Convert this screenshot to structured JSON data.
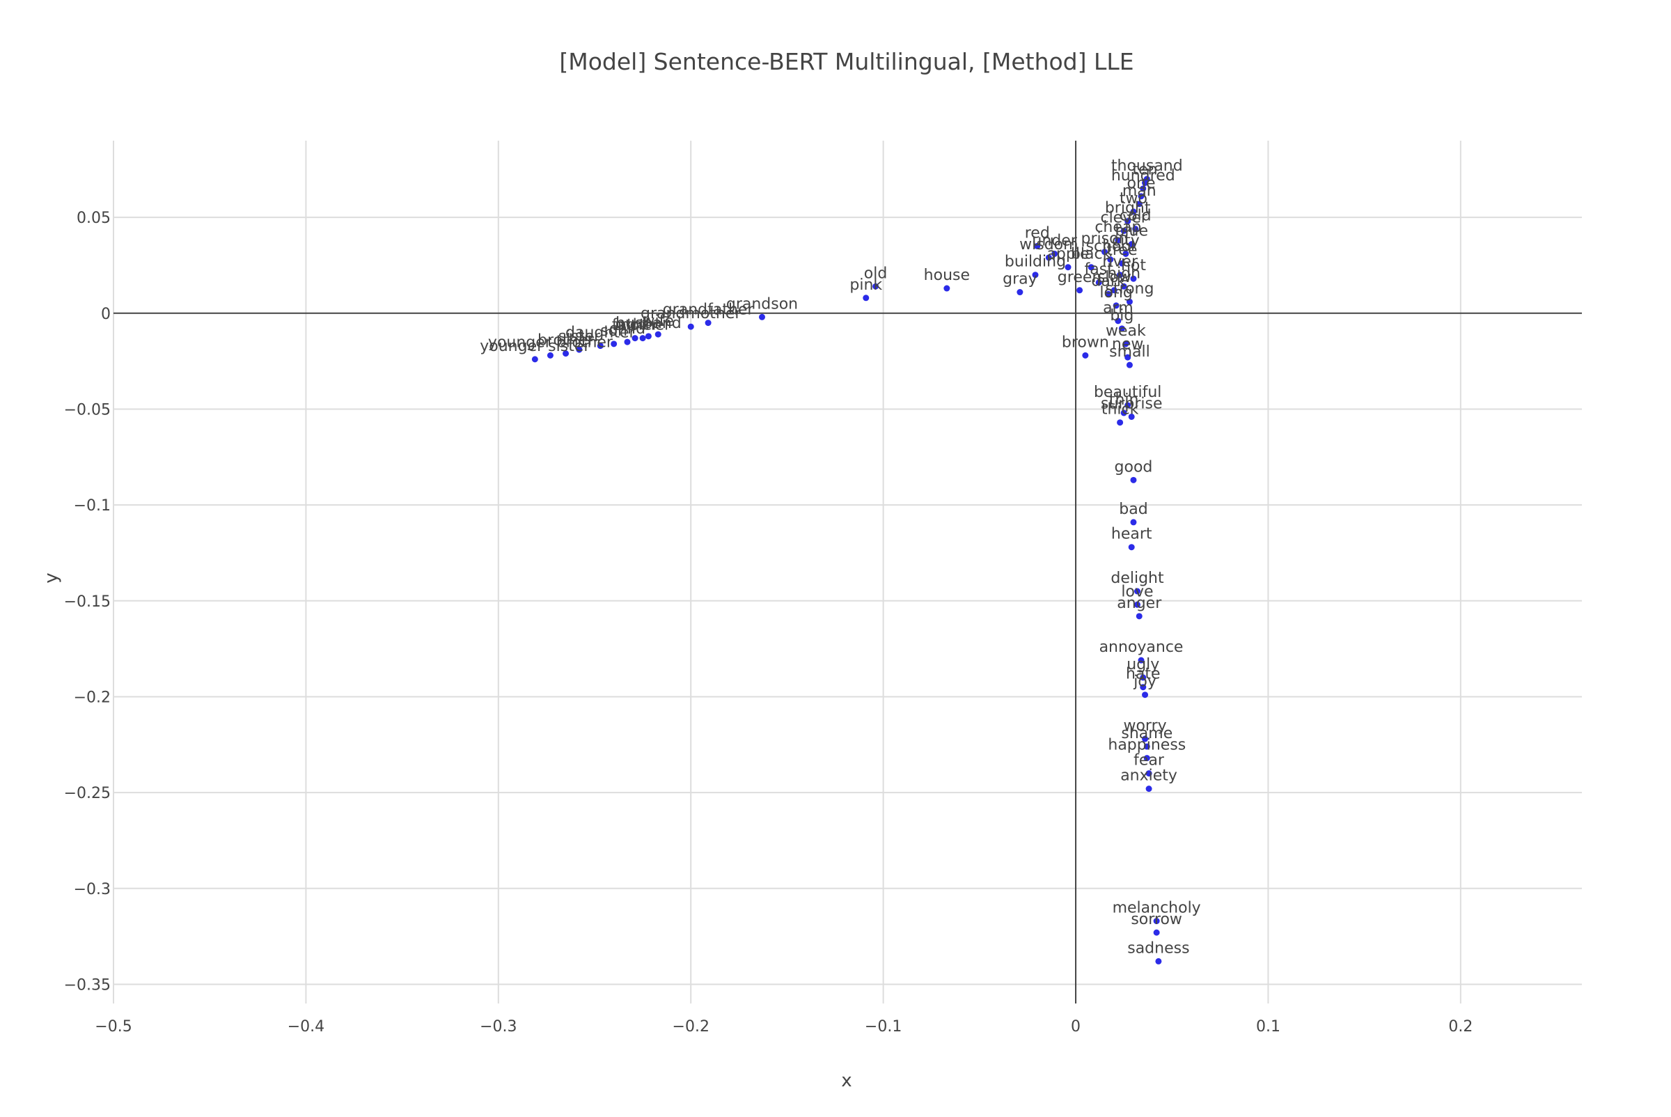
{
  "chart_data": {
    "type": "scatter",
    "title": "[Model] Sentence-BERT Multilingual, [Method] LLE",
    "xlabel": "x",
    "ylabel": "y",
    "xlim": [
      -0.5,
      0.263
    ],
    "ylim": [
      -0.36,
      0.09
    ],
    "xticks": [
      -0.5,
      -0.4,
      -0.3,
      -0.2,
      -0.1,
      0,
      0.1,
      0.2
    ],
    "xtick_labels": [
      "−0.5",
      "−0.4",
      "−0.3",
      "−0.2",
      "−0.1",
      "0",
      "0.1",
      "0.2"
    ],
    "yticks": [
      0.05,
      0,
      -0.05,
      -0.1,
      -0.15,
      -0.2,
      -0.25,
      -0.3,
      -0.35
    ],
    "ytick_labels": [
      "0.05",
      "0",
      "−0.05",
      "−0.1",
      "−0.15",
      "−0.2",
      "−0.25",
      "−0.3",
      "−0.35"
    ],
    "grid": true,
    "marker_color": "#2b2be8",
    "points": [
      {
        "x": -0.281,
        "y": -0.024,
        "label": "younger sister"
      },
      {
        "x": -0.273,
        "y": -0.022,
        "label": "younger brother"
      },
      {
        "x": -0.265,
        "y": -0.021,
        "label": "brother"
      },
      {
        "x": -0.258,
        "y": -0.019,
        "label": "sister"
      },
      {
        "x": -0.247,
        "y": -0.017,
        "label": "daughter"
      },
      {
        "x": -0.24,
        "y": -0.016,
        "label": "son"
      },
      {
        "x": -0.233,
        "y": -0.015,
        "label": "child"
      },
      {
        "x": -0.229,
        "y": -0.013,
        "label": "father"
      },
      {
        "x": -0.225,
        "y": -0.013,
        "label": "mother"
      },
      {
        "x": -0.222,
        "y": -0.012,
        "label": "husband"
      },
      {
        "x": -0.217,
        "y": -0.011,
        "label": "wife"
      },
      {
        "x": -0.2,
        "y": -0.007,
        "label": "grandmother"
      },
      {
        "x": -0.191,
        "y": -0.005,
        "label": "grandfather"
      },
      {
        "x": -0.163,
        "y": -0.002,
        "label": "grandson"
      },
      {
        "x": -0.109,
        "y": 0.008,
        "label": "pink"
      },
      {
        "x": -0.104,
        "y": 0.014,
        "label": "old"
      },
      {
        "x": -0.067,
        "y": 0.013,
        "label": "house"
      },
      {
        "x": -0.029,
        "y": 0.011,
        "label": "gray"
      },
      {
        "x": -0.021,
        "y": 0.02,
        "label": "building"
      },
      {
        "x": -0.02,
        "y": 0.035,
        "label": "red"
      },
      {
        "x": -0.014,
        "y": 0.029,
        "label": "wisdom"
      },
      {
        "x": -0.011,
        "y": 0.031,
        "label": "under"
      },
      {
        "x": -0.004,
        "y": 0.024,
        "label": "apple"
      },
      {
        "x": 0.002,
        "y": 0.012,
        "label": "green"
      },
      {
        "x": 0.005,
        "y": -0.022,
        "label": "brown"
      },
      {
        "x": 0.008,
        "y": 0.024,
        "label": "black"
      },
      {
        "x": 0.012,
        "y": 0.016,
        "label": "fast"
      },
      {
        "x": 0.015,
        "y": 0.032,
        "label": "prison"
      },
      {
        "x": 0.017,
        "y": 0.01,
        "label": "dark"
      },
      {
        "x": 0.018,
        "y": 0.028,
        "label": "school"
      },
      {
        "x": 0.02,
        "y": 0.012,
        "label": "slow"
      },
      {
        "x": 0.021,
        "y": 0.004,
        "label": "long"
      },
      {
        "x": 0.022,
        "y": -0.004,
        "label": "arm"
      },
      {
        "x": 0.022,
        "y": 0.038,
        "label": "cheap"
      },
      {
        "x": 0.023,
        "y": 0.02,
        "label": "river"
      },
      {
        "x": 0.024,
        "y": -0.008,
        "label": "big"
      },
      {
        "x": 0.024,
        "y": 0.026,
        "label": "tree"
      },
      {
        "x": 0.025,
        "y": 0.043,
        "label": "clever"
      },
      {
        "x": 0.025,
        "y": 0.014,
        "label": "high"
      },
      {
        "x": 0.026,
        "y": -0.016,
        "label": "weak"
      },
      {
        "x": 0.026,
        "y": 0.031,
        "label": "city"
      },
      {
        "x": 0.027,
        "y": -0.023,
        "label": "new"
      },
      {
        "x": 0.027,
        "y": 0.048,
        "label": "bright"
      },
      {
        "x": 0.028,
        "y": 0.006,
        "label": "strong"
      },
      {
        "x": 0.028,
        "y": -0.027,
        "label": "small"
      },
      {
        "x": 0.029,
        "y": 0.036,
        "label": "blue"
      },
      {
        "x": 0.03,
        "y": 0.053,
        "label": "two"
      },
      {
        "x": 0.03,
        "y": 0.018,
        "label": "hot"
      },
      {
        "x": 0.031,
        "y": 0.044,
        "label": "cold"
      },
      {
        "x": 0.033,
        "y": 0.057,
        "label": "man"
      },
      {
        "x": 0.034,
        "y": 0.061,
        "label": "one"
      },
      {
        "x": 0.035,
        "y": 0.065,
        "label": "hundred"
      },
      {
        "x": 0.036,
        "y": 0.068,
        "label": "ten"
      },
      {
        "x": 0.037,
        "y": 0.07,
        "label": "thousand"
      },
      {
        "x": 0.023,
        "y": -0.057,
        "label": "thick"
      },
      {
        "x": 0.025,
        "y": -0.052,
        "label": "thin"
      },
      {
        "x": 0.027,
        "y": -0.048,
        "label": "beautiful"
      },
      {
        "x": 0.029,
        "y": -0.054,
        "label": "surprise"
      },
      {
        "x": 0.03,
        "y": -0.087,
        "label": "good"
      },
      {
        "x": 0.03,
        "y": -0.109,
        "label": "bad"
      },
      {
        "x": 0.029,
        "y": -0.122,
        "label": "heart"
      },
      {
        "x": 0.032,
        "y": -0.145,
        "label": "delight"
      },
      {
        "x": 0.032,
        "y": -0.152,
        "label": "love"
      },
      {
        "x": 0.033,
        "y": -0.158,
        "label": "anger"
      },
      {
        "x": 0.034,
        "y": -0.181,
        "label": "annoyance"
      },
      {
        "x": 0.035,
        "y": -0.19,
        "label": "ugly"
      },
      {
        "x": 0.035,
        "y": -0.195,
        "label": "hate"
      },
      {
        "x": 0.036,
        "y": -0.199,
        "label": "joy"
      },
      {
        "x": 0.036,
        "y": -0.222,
        "label": "worry"
      },
      {
        "x": 0.037,
        "y": -0.226,
        "label": "shame"
      },
      {
        "x": 0.037,
        "y": -0.232,
        "label": "happiness"
      },
      {
        "x": 0.038,
        "y": -0.24,
        "label": "fear"
      },
      {
        "x": 0.038,
        "y": -0.248,
        "label": "anxiety"
      },
      {
        "x": 0.042,
        "y": -0.317,
        "label": "melancholy"
      },
      {
        "x": 0.042,
        "y": -0.323,
        "label": "sorrow"
      },
      {
        "x": 0.043,
        "y": -0.338,
        "label": "sadness"
      }
    ]
  }
}
